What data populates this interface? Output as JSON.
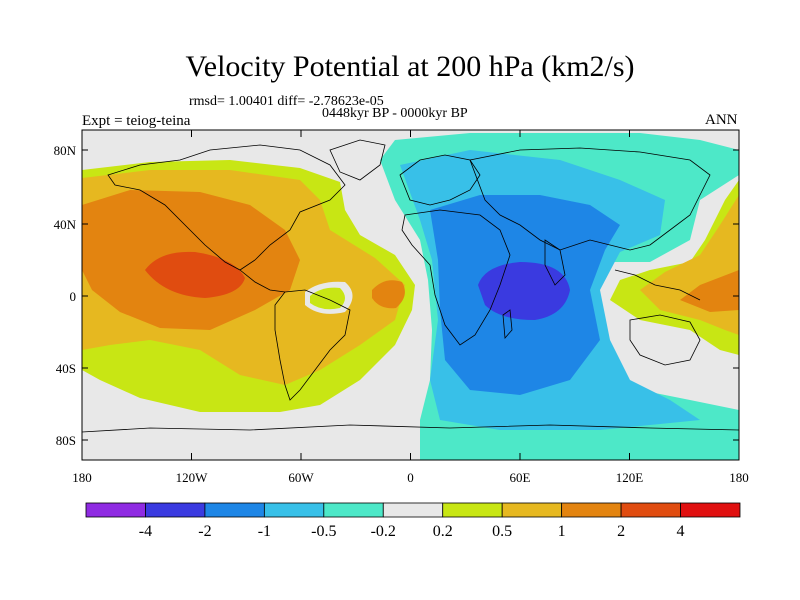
{
  "title": "Velocity Potential at 200 hPa (km2/s)",
  "stats": "rmsd= 1.00401 diff= -2.78623e-05",
  "period": "0448kyr BP - 0000kyr BP",
  "experiment": "Expt = teiog-teina",
  "season": "ANN",
  "lat_ticks": [
    "80N",
    "40N",
    "0",
    "40S",
    "80S"
  ],
  "lon_ticks": [
    "180",
    "120W",
    "60W",
    "0",
    "60E",
    "120E",
    "180"
  ],
  "colorbar": {
    "labels": [
      "-4",
      "-2",
      "-1",
      "-0.5",
      "-0.2",
      "0.2",
      "0.5",
      "1",
      "2",
      "4"
    ],
    "colors": [
      "#8f2be2",
      "#3a3ae0",
      "#1e86e6",
      "#38c0e8",
      "#4de8c8",
      "#e8e8e8",
      "#c8e614",
      "#e6b820",
      "#e38410",
      "#e04c10",
      "#e01010"
    ]
  }
}
